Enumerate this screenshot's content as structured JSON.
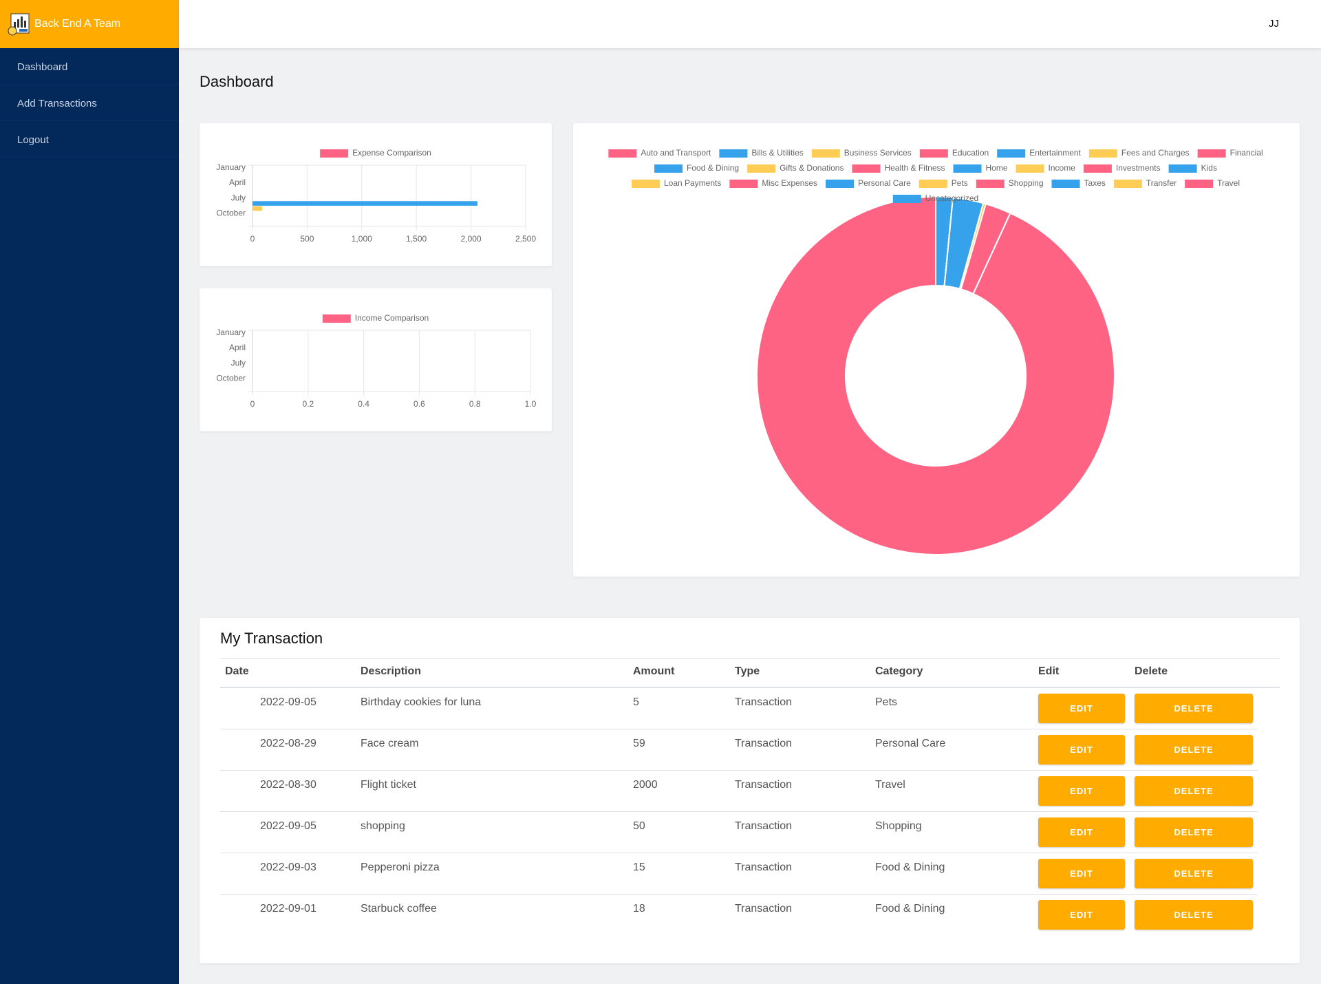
{
  "sidebar": {
    "brand": "Back End A Team",
    "nav": [
      "Dashboard",
      "Add Transactions",
      "Logout"
    ]
  },
  "header": {
    "user": "JJ"
  },
  "page_title": "Dashboard",
  "chart_data": [
    {
      "type": "hbar",
      "legend": "Expense Comparison",
      "categories": [
        "January",
        null,
        null,
        "April",
        null,
        null,
        "July",
        null,
        null,
        "October",
        null,
        null
      ],
      "values": [
        0,
        0,
        0,
        0,
        0,
        0,
        0,
        2059,
        88,
        0,
        0,
        0
      ],
      "colors": [
        "#ff6384",
        "#36a2eb",
        "#ffcd56",
        "#ff6384",
        "#36a2eb",
        "#ffcd56",
        "#ff6384",
        "#36a2eb",
        "#ffcd56",
        "#ff6384",
        "#36a2eb",
        "#ffcd56"
      ],
      "xlim": [
        0,
        2500
      ],
      "xticks": [
        0,
        500,
        {
          "value": 1000,
          "label": "1,000"
        },
        {
          "value": 1500,
          "label": "1,500"
        },
        {
          "value": 2000,
          "label": "2,000"
        },
        {
          "value": 2500,
          "label": "2,500"
        }
      ],
      "grid": true
    },
    {
      "type": "hbar",
      "legend": "Income Comparison",
      "color": "#ff6384",
      "categories": [
        "January",
        null,
        null,
        "April",
        null,
        null,
        "July",
        null,
        null,
        "October",
        null,
        null
      ],
      "xlim": [
        0,
        1
      ],
      "xticks": [
        0,
        0.2,
        0.4,
        0.6,
        0.8,
        {
          "value": 1,
          "label": "1.0"
        }
      ],
      "grid": true
    },
    {
      "type": "doughnut",
      "categories": [
        "Auto and Transport",
        "Bills & Utilities",
        "Business Services",
        "Education",
        "Entertainment",
        "Fees and Charges",
        "Financial",
        "Food & Dining",
        "Gifts & Donations",
        "Health & Fitness",
        "Home",
        "Income",
        "Investments",
        "Kids",
        "Loan Payments",
        "Misc Expenses",
        "Personal Care",
        "Pets",
        "Shopping",
        "Taxes",
        "Transfer",
        "Travel",
        "Uncategorized"
      ],
      "values": [
        0,
        0,
        0,
        0,
        0,
        0,
        0,
        33,
        0,
        0,
        0,
        0,
        0,
        0,
        0,
        0,
        59,
        5,
        50,
        0,
        0,
        2000,
        0
      ],
      "colors": [
        "#ff6384",
        "#36a2eb",
        "#ffcd56",
        "#ff6384",
        "#36a2eb",
        "#ffcd56",
        "#ff6384",
        "#36a2eb",
        "#ffcd56",
        "#ff6384",
        "#36a2eb",
        "#ffcd56",
        "#ff6384",
        "#36a2eb",
        "#ffcd56",
        "#ff6384",
        "#36a2eb",
        "#ffcd56",
        "#ff6384",
        "#36a2eb",
        "#ffcd56",
        "#ff6384",
        "#36a2eb"
      ]
    }
  ],
  "transactions": {
    "title": "My Transaction",
    "columns": [
      "Date",
      "Description",
      "Amount",
      "Type",
      "Category",
      "Edit",
      "Delete"
    ],
    "rows": [
      [
        "2022-09-05",
        "Birthday cookies for luna",
        5,
        "Transaction",
        "Pets",
        "EDIT",
        "DELETE"
      ],
      [
        "2022-08-29",
        "Face cream",
        59,
        "Transaction",
        "Personal Care",
        "EDIT",
        "DELETE"
      ],
      [
        "2022-08-30",
        "Flight ticket",
        2000,
        "Transaction",
        "Travel",
        "EDIT",
        "DELETE"
      ],
      [
        "2022-09-05",
        "shopping",
        50,
        "Transaction",
        "Shopping",
        "EDIT",
        "DELETE"
      ],
      [
        "2022-09-03",
        "Pepperoni pizza",
        15,
        "Transaction",
        "Food & Dining",
        "EDIT",
        "DELETE"
      ],
      [
        "2022-09-01",
        "Starbuck coffee",
        18,
        "Transaction",
        "Food & Dining",
        "EDIT",
        "DELETE"
      ]
    ]
  }
}
